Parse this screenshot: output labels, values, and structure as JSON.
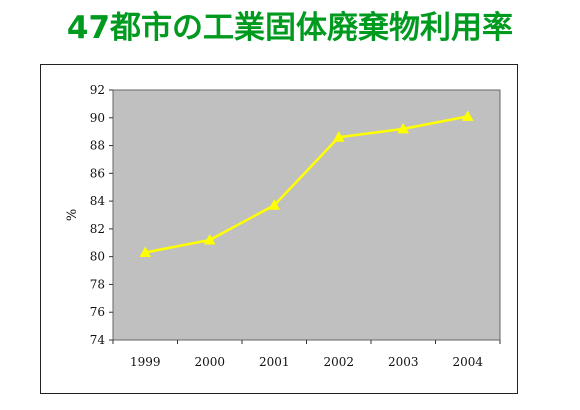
{
  "title": "47都市の工業固体廃棄物利用率",
  "colors": {
    "title": "#009a1e",
    "plot_background": "#c0c0c0",
    "line": "#ffff00",
    "frame": "#222222"
  },
  "chart_data": {
    "type": "line",
    "categories": [
      "1999",
      "2000",
      "2001",
      "2002",
      "2003",
      "2004"
    ],
    "series": [
      {
        "values": [
          80.3,
          81.2,
          83.7,
          88.6,
          89.2,
          90.1
        ],
        "marker": "triangle"
      }
    ],
    "ylabel": "%",
    "xlabel": "",
    "ylim": [
      74,
      92
    ],
    "yticks": [
      74,
      76,
      78,
      80,
      82,
      84,
      86,
      88,
      90,
      92
    ],
    "grid": false,
    "legend": "none"
  }
}
